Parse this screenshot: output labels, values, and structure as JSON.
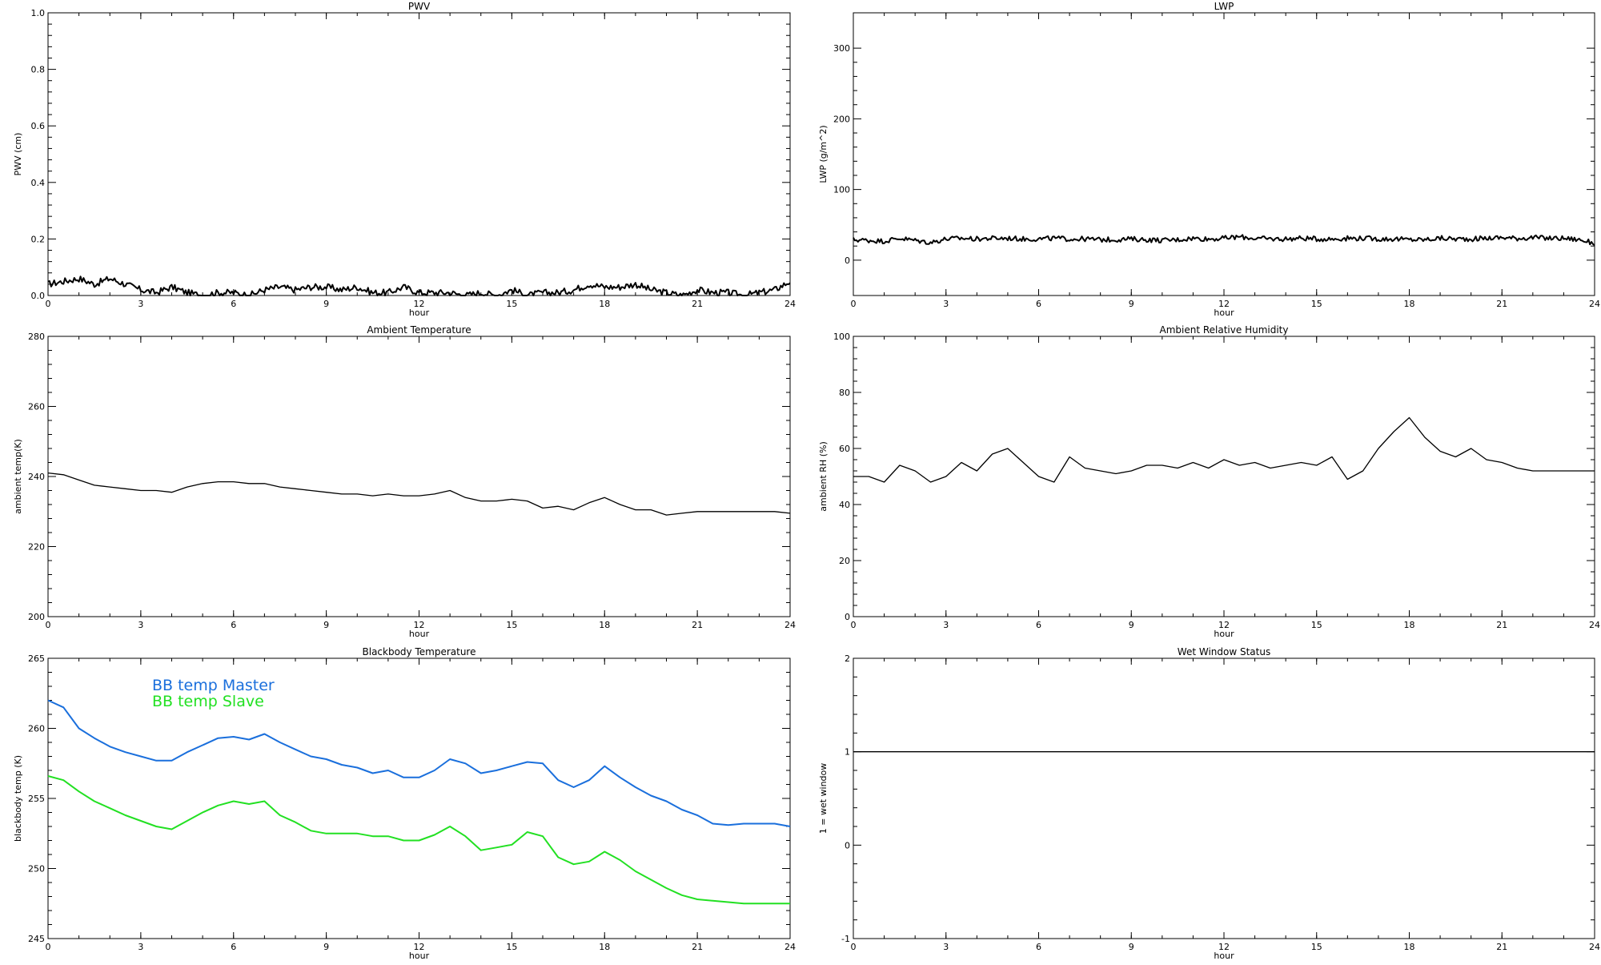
{
  "chart_data": [
    {
      "id": "pwv",
      "type": "line",
      "title": "PWV",
      "xlabel": "hour",
      "ylabel": "PWV (cm)",
      "xlim": [
        0,
        24
      ],
      "ylim": [
        0,
        1.0
      ],
      "xticks": [
        "0",
        "3",
        "6",
        "9",
        "12",
        "15",
        "18",
        "21",
        "24"
      ],
      "yticks": [
        "0.0",
        "0.2",
        "0.4",
        "0.6",
        "0.8",
        "1.0"
      ],
      "series": [
        {
          "color": "#000000",
          "style": "noisy",
          "x": [
            0,
            0.5,
            1.0,
            1.5,
            2.0,
            2.5,
            3.0,
            3.5,
            4.0,
            4.5,
            5.0,
            5.5,
            6.0,
            6.5,
            7.0,
            7.5,
            8.0,
            8.5,
            9.0,
            9.5,
            10.0,
            10.5,
            11.0,
            11.5,
            12.0,
            12.5,
            13.0,
            13.5,
            14.0,
            14.5,
            15.0,
            15.5,
            16.0,
            16.5,
            17.0,
            17.5,
            18.0,
            18.5,
            19.0,
            19.5,
            20.0,
            20.5,
            21.0,
            21.5,
            22.0,
            22.5,
            23.0,
            23.5,
            24.0
          ],
          "values": [
            0.04,
            0.05,
            0.06,
            0.04,
            0.06,
            0.04,
            0.02,
            0.01,
            0.03,
            0.01,
            0.0,
            0.01,
            0.01,
            0.0,
            0.02,
            0.03,
            0.02,
            0.03,
            0.03,
            0.02,
            0.03,
            0.01,
            0.01,
            0.03,
            0.01,
            0.01,
            0.01,
            0.0,
            0.01,
            0.0,
            0.02,
            0.0,
            0.01,
            0.01,
            0.02,
            0.04,
            0.03,
            0.03,
            0.04,
            0.02,
            0.01,
            0.0,
            0.02,
            0.01,
            0.01,
            0.0,
            0.01,
            0.02,
            0.05
          ]
        }
      ]
    },
    {
      "id": "lwp",
      "type": "line",
      "title": "LWP",
      "xlabel": "hour",
      "ylabel": "LWP (g/m^2)",
      "xlim": [
        0,
        24
      ],
      "ylim": [
        -50,
        350
      ],
      "xticks": [
        "0",
        "3",
        "6",
        "9",
        "12",
        "15",
        "18",
        "21",
        "24"
      ],
      "yticks": [
        "0",
        "100",
        "200",
        "300"
      ],
      "series": [
        {
          "color": "#000000",
          "style": "noisy",
          "x": [
            0,
            0.5,
            1.0,
            1.5,
            2.0,
            2.5,
            3.0,
            3.5,
            4.0,
            4.5,
            5.0,
            5.5,
            6.0,
            6.5,
            7.0,
            7.5,
            8.0,
            8.5,
            9.0,
            9.5,
            10.0,
            10.5,
            11.0,
            11.5,
            12.0,
            12.5,
            13.0,
            13.5,
            14.0,
            14.5,
            15.0,
            15.5,
            16.0,
            16.5,
            17.0,
            17.5,
            18.0,
            18.5,
            19.0,
            19.5,
            20.0,
            20.5,
            21.0,
            21.5,
            22.0,
            22.5,
            23.0,
            23.5,
            24.0
          ],
          "values": [
            29,
            28,
            27,
            31,
            28,
            25,
            30,
            31,
            30,
            31,
            31,
            30,
            30,
            31,
            30,
            30,
            29,
            29,
            30,
            29,
            28,
            29,
            31,
            30,
            31,
            33,
            31,
            30,
            30,
            31,
            30,
            30,
            31,
            31,
            30,
            30,
            29,
            29,
            31,
            30,
            30,
            31,
            32,
            31,
            32,
            31,
            31,
            29,
            24
          ]
        }
      ]
    },
    {
      "id": "ambient-temp",
      "type": "line",
      "title": "Ambient Temperature",
      "xlabel": "hour",
      "ylabel": "ambient temp(K)",
      "xlim": [
        0,
        24
      ],
      "ylim": [
        200,
        280
      ],
      "xticks": [
        "0",
        "3",
        "6",
        "9",
        "12",
        "15",
        "18",
        "21",
        "24"
      ],
      "yticks": [
        "200",
        "220",
        "240",
        "260",
        "280"
      ],
      "series": [
        {
          "color": "#000000",
          "x": [
            0,
            0.5,
            1.0,
            1.5,
            2.0,
            2.5,
            3.0,
            3.5,
            4.0,
            4.5,
            5.0,
            5.5,
            6.0,
            6.5,
            7.0,
            7.5,
            8.0,
            8.5,
            9.0,
            9.5,
            10.0,
            10.5,
            11.0,
            11.5,
            12.0,
            12.5,
            13.0,
            13.5,
            14.0,
            14.5,
            15.0,
            15.5,
            16.0,
            16.5,
            17.0,
            17.5,
            18.0,
            18.5,
            19.0,
            19.5,
            20.0,
            20.5,
            21.0,
            21.5,
            22.0,
            22.5,
            23.0,
            23.5,
            24.0
          ],
          "values": [
            241,
            240.5,
            239,
            237.5,
            237,
            236.5,
            236,
            236,
            235.5,
            237,
            238,
            238.5,
            238.5,
            238,
            238,
            237,
            236.5,
            236,
            235.5,
            235,
            235,
            234.5,
            235,
            234.5,
            234.5,
            235,
            236,
            234,
            233,
            233,
            233.5,
            233,
            231,
            231.5,
            230.5,
            232.5,
            234,
            232,
            230.5,
            230.5,
            229,
            229.5,
            230,
            230,
            230,
            230,
            230,
            230,
            229.5
          ]
        }
      ]
    },
    {
      "id": "ambient-rh",
      "type": "line",
      "title": "Ambient Relative Humidity",
      "xlabel": "hour",
      "ylabel": "ambient RH (%)",
      "xlim": [
        0,
        24
      ],
      "ylim": [
        0,
        100
      ],
      "xticks": [
        "0",
        "3",
        "6",
        "9",
        "12",
        "15",
        "18",
        "21",
        "24"
      ],
      "yticks": [
        "0",
        "20",
        "40",
        "60",
        "80",
        "100"
      ],
      "series": [
        {
          "color": "#000000",
          "x": [
            0,
            0.5,
            1.0,
            1.5,
            2.0,
            2.5,
            3.0,
            3.5,
            4.0,
            4.5,
            5.0,
            5.5,
            6.0,
            6.5,
            7.0,
            7.5,
            8.0,
            8.5,
            9.0,
            9.5,
            10.0,
            10.5,
            11.0,
            11.5,
            12.0,
            12.5,
            13.0,
            13.5,
            14.0,
            14.5,
            15.0,
            15.5,
            16.0,
            16.5,
            17.0,
            17.5,
            18.0,
            18.5,
            19.0,
            19.5,
            20.0,
            20.5,
            21.0,
            21.5,
            22.0,
            22.5,
            23.0,
            23.5,
            24.0
          ],
          "values": [
            50,
            50,
            48,
            54,
            52,
            48,
            50,
            55,
            52,
            58,
            60,
            55,
            50,
            48,
            57,
            53,
            52,
            51,
            52,
            54,
            54,
            53,
            55,
            53,
            56,
            54,
            55,
            53,
            54,
            55,
            54,
            57,
            49,
            52,
            60,
            66,
            71,
            64,
            59,
            57,
            60,
            56,
            55,
            53,
            52,
            52,
            52,
            52,
            52
          ]
        }
      ]
    },
    {
      "id": "blackbody-temp",
      "type": "line",
      "title": "Blackbody Temperature",
      "xlabel": "hour",
      "ylabel": "blackbody temp (K)",
      "xlim": [
        0,
        24
      ],
      "ylim": [
        245,
        265
      ],
      "xticks": [
        "0",
        "3",
        "6",
        "9",
        "12",
        "15",
        "18",
        "21",
        "24"
      ],
      "yticks": [
        "245",
        "250",
        "255",
        "260",
        "265"
      ],
      "legend": "top-left",
      "series": [
        {
          "name": "BB temp Master",
          "color": "#1a6fdc",
          "x": [
            0,
            0.5,
            1.0,
            1.5,
            2.0,
            2.5,
            3.0,
            3.5,
            4.0,
            4.5,
            5.0,
            5.5,
            6.0,
            6.5,
            7.0,
            7.5,
            8.0,
            8.5,
            9.0,
            9.5,
            10.0,
            10.5,
            11.0,
            11.5,
            12.0,
            12.5,
            13.0,
            13.5,
            14.0,
            14.5,
            15.0,
            15.5,
            16.0,
            16.5,
            17.0,
            17.5,
            18.0,
            18.5,
            19.0,
            19.5,
            20.0,
            20.5,
            21.0,
            21.5,
            22.0,
            22.5,
            23.0,
            23.5,
            24.0
          ],
          "values": [
            262,
            261.5,
            260,
            259.3,
            258.7,
            258.3,
            258,
            257.7,
            257.7,
            258.3,
            258.8,
            259.3,
            259.4,
            259.2,
            259.6,
            259,
            258.5,
            258,
            257.8,
            257.4,
            257.2,
            256.8,
            257,
            256.5,
            256.5,
            257,
            257.8,
            257.5,
            256.8,
            257,
            257.3,
            257.6,
            257.5,
            256.3,
            255.8,
            256.3,
            257.3,
            256.5,
            255.8,
            255.2,
            254.8,
            254.2,
            253.8,
            253.2,
            253.1,
            253.2,
            253.2,
            253.2,
            253
          ]
        },
        {
          "name": "BB temp Slave",
          "color": "#22e022",
          "x": [
            0,
            0.5,
            1.0,
            1.5,
            2.0,
            2.5,
            3.0,
            3.5,
            4.0,
            4.5,
            5.0,
            5.5,
            6.0,
            6.5,
            7.0,
            7.5,
            8.0,
            8.5,
            9.0,
            9.5,
            10.0,
            10.5,
            11.0,
            11.5,
            12.0,
            12.5,
            13.0,
            13.5,
            14.0,
            14.5,
            15.0,
            15.5,
            16.0,
            16.5,
            17.0,
            17.5,
            18.0,
            18.5,
            19.0,
            19.5,
            20.0,
            20.5,
            21.0,
            21.5,
            22.0,
            22.5,
            23.0,
            23.5,
            24.0
          ],
          "values": [
            256.6,
            256.3,
            255.5,
            254.8,
            254.3,
            253.8,
            253.4,
            253,
            252.8,
            253.4,
            254,
            254.5,
            254.8,
            254.6,
            254.8,
            253.8,
            253.3,
            252.7,
            252.5,
            252.5,
            252.5,
            252.3,
            252.3,
            252,
            252,
            252.4,
            253,
            252.3,
            251.3,
            251.5,
            251.7,
            252.6,
            252.3,
            250.8,
            250.3,
            250.5,
            251.2,
            250.6,
            249.8,
            249.2,
            248.6,
            248.1,
            247.8,
            247.7,
            247.6,
            247.5,
            247.5,
            247.5,
            247.5
          ]
        }
      ]
    },
    {
      "id": "wet-window",
      "type": "line",
      "title": "Wet Window Status",
      "xlabel": "hour",
      "ylabel": "1 = wet window",
      "xlim": [
        0,
        24
      ],
      "ylim": [
        -1,
        2
      ],
      "xticks": [
        "0",
        "3",
        "6",
        "9",
        "12",
        "15",
        "18",
        "21",
        "24"
      ],
      "yticks": [
        "-1",
        "0",
        "1",
        "2"
      ],
      "series": [
        {
          "color": "#000000",
          "x": [
            0,
            24
          ],
          "values": [
            1,
            1
          ]
        }
      ]
    }
  ]
}
